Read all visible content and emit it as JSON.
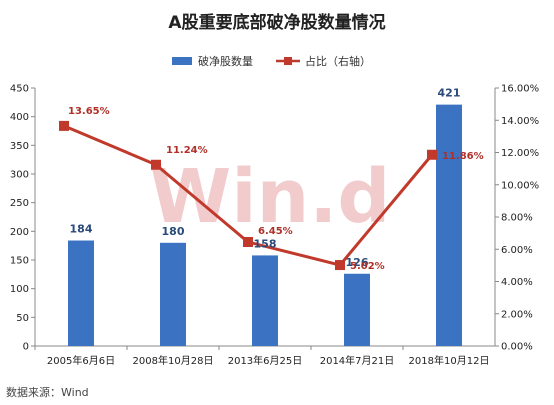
{
  "source_text": "数据来源：Wind",
  "watermark": "Win.d",
  "colors": {
    "bar": "#3b73c2",
    "line": "#c0392b",
    "marker": "#c0392b"
  },
  "chart_data": {
    "type": "bar",
    "title": "A股重要底部破净股数量情况",
    "categories": [
      "2005年6月6日",
      "2008年10月28日",
      "2013年6月25日",
      "2014年7月21日",
      "2018年10月12日"
    ],
    "series": [
      {
        "name": "破净股数量",
        "type": "bar",
        "axis": "left",
        "values": [
          184,
          180,
          158,
          126,
          421
        ]
      },
      {
        "name": "占比（右轴）",
        "type": "line",
        "axis": "right",
        "values": [
          13.65,
          11.24,
          6.45,
          5.02,
          11.86
        ]
      }
    ],
    "bar_labels": [
      "184",
      "180",
      "158",
      "126",
      "421"
    ],
    "line_labels": [
      "13.65%",
      "11.24%",
      "6.45%",
      "5.02%",
      "11.86%"
    ],
    "left_axis": {
      "ylim": [
        0,
        450
      ],
      "ticks": [
        "0",
        "50",
        "100",
        "150",
        "200",
        "250",
        "300",
        "350",
        "400",
        "450"
      ]
    },
    "right_axis": {
      "ylim": [
        0,
        16
      ],
      "ticks": [
        "0.00%",
        "2.00%",
        "4.00%",
        "6.00%",
        "8.00%",
        "10.00%",
        "12.00%",
        "14.00%",
        "16.00%"
      ]
    },
    "legend_position": "top",
    "grid": false
  }
}
